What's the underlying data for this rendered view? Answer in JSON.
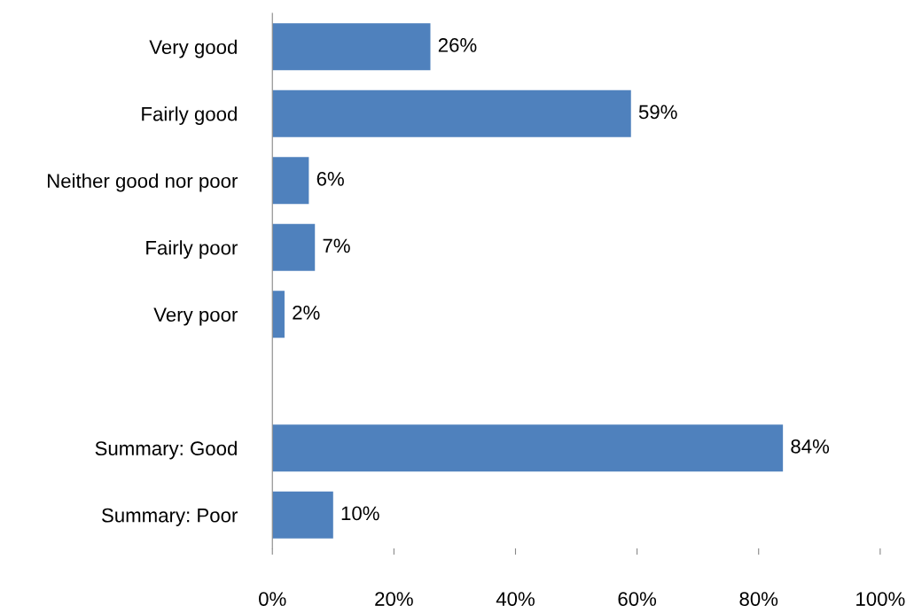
{
  "chart_data": {
    "type": "bar",
    "orientation": "horizontal",
    "categories": [
      "Very good",
      "Fairly good",
      "Neither good nor poor",
      "Fairly poor",
      "Very poor",
      null,
      "Summary: Good",
      "Summary: Poor"
    ],
    "values": [
      26,
      59,
      6,
      7,
      2,
      null,
      84,
      10
    ],
    "value_labels": [
      "26%",
      "59%",
      "6%",
      "7%",
      "2%",
      null,
      "84%",
      "10%"
    ],
    "color": "#4f81bd",
    "xlim": [
      0,
      100
    ],
    "xticks": [
      {
        "value": 0,
        "label": "0%"
      },
      {
        "value": 20,
        "label": "20%"
      },
      {
        "value": 40,
        "label": "40%"
      },
      {
        "value": 60,
        "label": "60%"
      },
      {
        "value": 80,
        "label": "80%"
      },
      {
        "value": 100,
        "label": "100%"
      }
    ],
    "grid": false,
    "legend": false
  }
}
